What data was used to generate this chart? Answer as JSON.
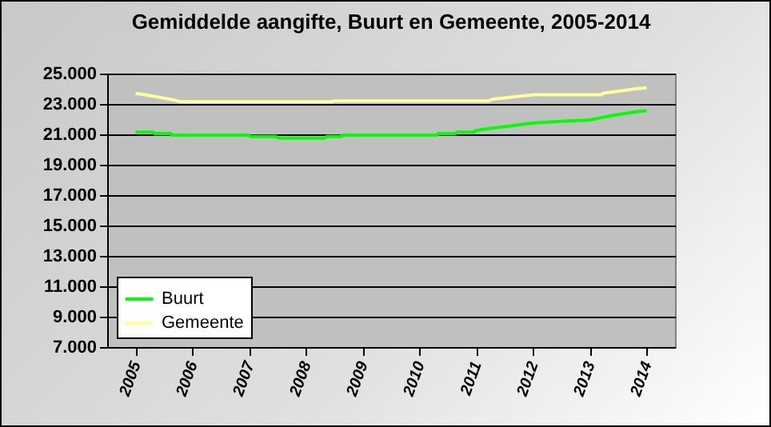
{
  "chart_data": {
    "type": "line",
    "title": "Gemiddelde aangifte, Buurt en Gemeente, 2005-2014",
    "xlim": [
      2004.5,
      2014.5
    ],
    "xticks": [
      2005,
      2006,
      2007,
      2008,
      2009,
      2010,
      2011,
      2012,
      2013,
      2014
    ],
    "ylim": [
      7000,
      25000
    ],
    "yticks": [
      {
        "value": 7000,
        "label": "7.000"
      },
      {
        "value": 9000,
        "label": "9.000"
      },
      {
        "value": 11000,
        "label": "11.000"
      },
      {
        "value": 13000,
        "label": "13.000"
      },
      {
        "value": 15000,
        "label": "15.000"
      },
      {
        "value": 17000,
        "label": "17.000"
      },
      {
        "value": 19000,
        "label": "19.000"
      },
      {
        "value": 21000,
        "label": "21.000"
      },
      {
        "value": 23000,
        "label": "23.000"
      },
      {
        "value": 25000,
        "label": "25.000"
      }
    ],
    "grid": "y",
    "legend": "bottom left",
    "marker": "none",
    "line_style": "solid",
    "series": [
      {
        "name": "Buurt",
        "color": "#00ff00",
        "x": [
          2005.0,
          2005.31,
          2005.33,
          2005.62,
          2005.64,
          2007.0,
          2007.02,
          2007.47,
          2007.52,
          2008.32,
          2008.37,
          2008.62,
          2008.64,
          2010.31,
          2010.33,
          2010.64,
          2010.66,
          2010.97,
          2010.99,
          2011.18,
          2011.37,
          2011.6,
          2011.79,
          2012.02,
          2012.49,
          2013.01,
          2013.2,
          2013.34,
          2013.5,
          2013.67,
          2013.83,
          2014.0
        ],
        "values": [
          21150,
          21150,
          21050,
          21050,
          20950,
          20950,
          20850,
          20850,
          20750,
          20750,
          20850,
          20850,
          20950,
          20950,
          21050,
          21050,
          21150,
          21150,
          21250,
          21350,
          21450,
          21550,
          21650,
          21750,
          21850,
          21950,
          22100,
          22200,
          22300,
          22400,
          22500,
          22550
        ]
      },
      {
        "name": "Gemeente",
        "color": "#ffff99",
        "x": [
          2005.0,
          2005.17,
          2005.33,
          2005.47,
          2005.62,
          2005.8,
          2008.46,
          2008.5,
          2011.23,
          2011.27,
          2011.5,
          2011.74,
          2012.02,
          2013.2,
          2013.23,
          2013.43,
          2013.62,
          2013.81,
          2014.0
        ],
        "values": [
          23700,
          23600,
          23500,
          23400,
          23300,
          23150,
          23150,
          23200,
          23200,
          23300,
          23400,
          23500,
          23600,
          23600,
          23700,
          23800,
          23900,
          24000,
          24050
        ]
      }
    ]
  }
}
